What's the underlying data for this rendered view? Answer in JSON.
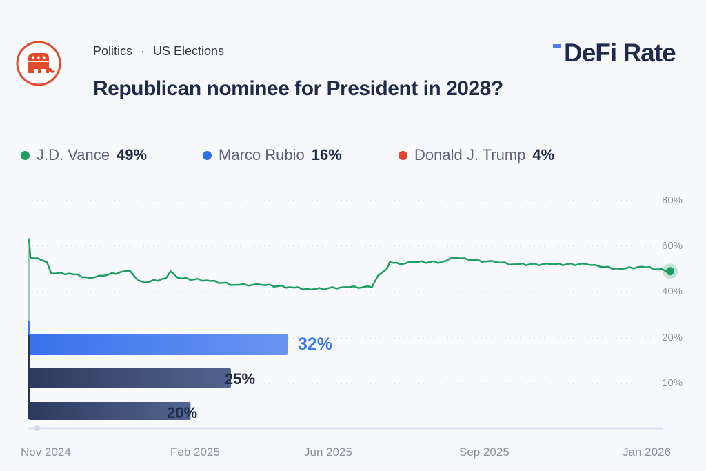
{
  "header": {
    "category": "Politics",
    "subcategory": "US Elections",
    "title": "Republican nominee for President in 2028?",
    "brand": "DeFi Rate",
    "logo_icon": "republican-elephant-icon"
  },
  "legend": [
    {
      "name": "J.D. Vance",
      "value": "49%",
      "color": "#1f9d63"
    },
    {
      "name": "Marco Rubio",
      "value": "16%",
      "color": "#2f6fe8"
    },
    {
      "name": "Donald J. Trump",
      "value": "4%",
      "color": "#e2462a"
    }
  ],
  "chart_data": [
    {
      "type": "line",
      "series": [
        {
          "name": "J.D. Vance",
          "color": "#1f9d63",
          "points": [
            [
              "2024-11-01",
              63
            ],
            [
              "2024-11-02",
              55
            ],
            [
              "2024-11-09",
              54
            ],
            [
              "2024-11-13",
              53
            ],
            [
              "2024-11-16",
              48
            ],
            [
              "2024-11-28",
              48
            ],
            [
              "2024-12-12",
              46
            ],
            [
              "2024-12-21",
              47
            ],
            [
              "2025-01-04",
              49
            ],
            [
              "2025-01-08",
              49
            ],
            [
              "2025-01-13",
              45
            ],
            [
              "2025-01-18",
              44
            ],
            [
              "2025-02-01",
              46
            ],
            [
              "2025-02-04",
              49
            ],
            [
              "2025-02-09",
              46
            ],
            [
              "2025-02-28",
              45
            ],
            [
              "2025-03-19",
              43
            ],
            [
              "2025-04-06",
              43
            ],
            [
              "2025-04-25",
              42
            ],
            [
              "2025-05-09",
              41
            ],
            [
              "2025-06-01",
              42
            ],
            [
              "2025-06-19",
              42
            ],
            [
              "2025-06-23",
              47
            ],
            [
              "2025-06-29",
              50
            ],
            [
              "2025-07-01",
              53
            ],
            [
              "2025-07-08",
              52
            ],
            [
              "2025-07-17",
              53
            ],
            [
              "2025-08-05",
              53
            ],
            [
              "2025-08-14",
              55
            ],
            [
              "2025-08-23",
              54
            ],
            [
              "2025-09-10",
              53
            ],
            [
              "2025-09-22",
              52
            ],
            [
              "2025-10-17",
              52
            ],
            [
              "2025-11-10",
              52
            ],
            [
              "2025-11-19",
              51
            ],
            [
              "2025-12-03",
              50
            ],
            [
              "2025-12-17",
              51
            ],
            [
              "2026-01-05",
              49
            ]
          ]
        }
      ],
      "x_ticks": [
        "Nov 2024",
        "Feb 2025",
        "Jun 2025",
        "Sep 2025",
        "Jan 2026"
      ],
      "y_ticks": [
        "80%",
        "60%",
        "40%",
        "20%",
        "10%"
      ],
      "grid": "dotted horizontal"
    },
    {
      "type": "bar",
      "orientation": "horizontal",
      "values": [
        32,
        25,
        20
      ],
      "labels": [
        "32%",
        "25%",
        "20%"
      ],
      "colors": [
        "#3d78ee",
        "#33426a",
        "#2f3d62"
      ]
    }
  ]
}
